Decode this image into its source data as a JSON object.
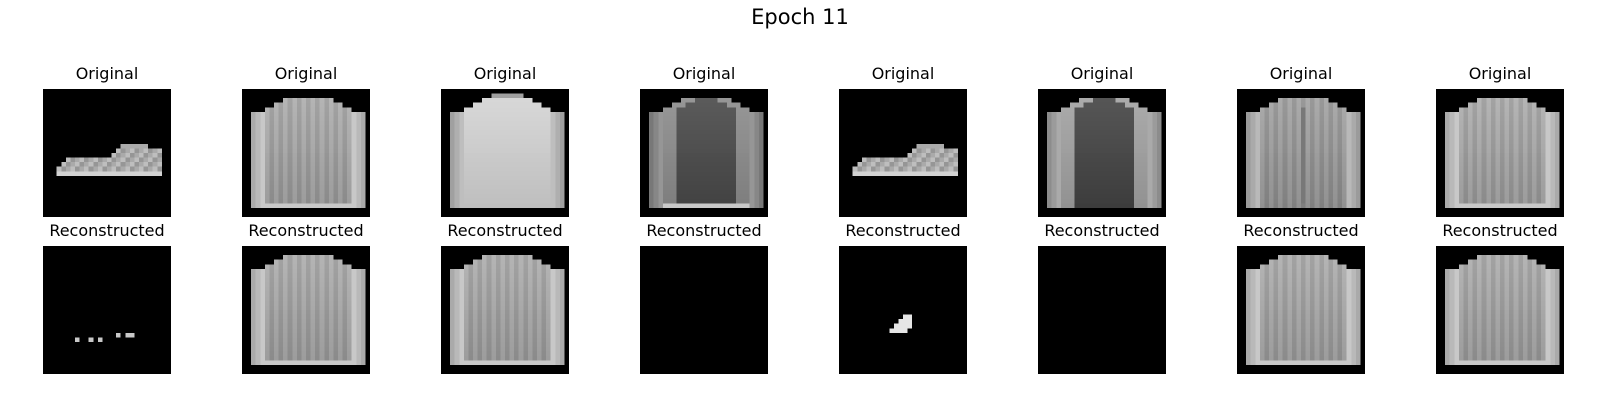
{
  "figure": {
    "title": "Epoch 11"
  },
  "rows": [
    {
      "label": "Original",
      "images": [
        "sneaker",
        "long-sleeve-top",
        "hoodie",
        "dark-sweater",
        "sneaker",
        "sweater",
        "jacket",
        "long-sleeve-top"
      ]
    },
    {
      "label": "Reconstructed",
      "images": [
        "sparse-dots",
        "long-sleeve-top",
        "long-sleeve-top",
        "blank",
        "small-blob",
        "blank",
        "long-sleeve-top",
        "long-sleeve-top"
      ]
    }
  ],
  "colors": {
    "image_background": "#000000",
    "page_background": "#ffffff"
  }
}
